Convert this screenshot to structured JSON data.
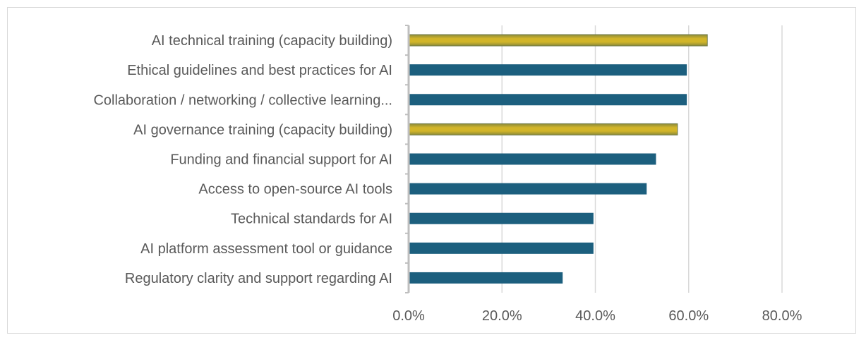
{
  "chart_data": {
    "type": "bar",
    "orientation": "horizontal",
    "title": "",
    "xlabel": "",
    "ylabel": "",
    "categories": [
      "AI technical training (capacity building)",
      "Ethical guidelines and best practices for AI",
      "Collaboration / networking / collective learning...",
      "AI governance training (capacity building)",
      "Funding and financial support for AI",
      "Access to open-source AI tools",
      "Technical standards for AI",
      "AI platform assessment tool or guidance",
      "Regulatory clarity and support regarding AI"
    ],
    "values": [
      64.0,
      59.6,
      59.6,
      57.6,
      53.0,
      51.0,
      39.6,
      39.6,
      33.0
    ],
    "highlighted": [
      true,
      false,
      false,
      true,
      false,
      false,
      false,
      false,
      false
    ],
    "xlim": [
      0,
      80
    ],
    "x_ticks": [
      0,
      20,
      40,
      60,
      80
    ],
    "x_tick_labels": [
      "0.0%",
      "20.0%",
      "40.0%",
      "60.0%",
      "80.0%"
    ],
    "grid": "vertical",
    "legend": "none",
    "colors": {
      "default_bar": "#1c5f7e",
      "highlight_bar": "#c2a92a",
      "highlight_bar_edge": "#6f7a4a",
      "grid": "#d9d9d9",
      "axis": "#bfbfbf",
      "label_text": "#595959"
    }
  }
}
